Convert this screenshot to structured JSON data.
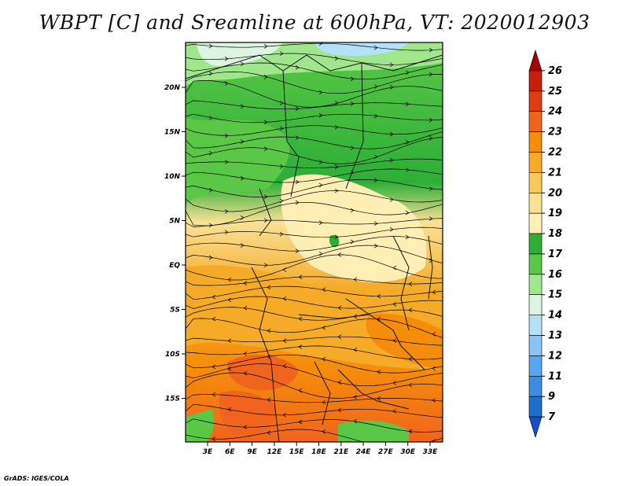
{
  "title": "WBPT [C] and Sreamline at 600hPa, VT: 2020012903",
  "footer": "GrADS: IGES/COLA",
  "map": {
    "lon_ticks": [
      "3E",
      "6E",
      "9E",
      "12E",
      "15E",
      "18E",
      "21E",
      "24E",
      "27E",
      "30E",
      "33E"
    ],
    "lat_ticks": [
      "20N",
      "15N",
      "10N",
      "5N",
      "EQ",
      "5S",
      "10S",
      "15S"
    ]
  },
  "colorbar": {
    "levels": [
      "26",
      "25",
      "24",
      "23",
      "22",
      "21",
      "20",
      "19",
      "18",
      "17",
      "16",
      "15",
      "14",
      "13",
      "12",
      "11",
      "9",
      "7"
    ],
    "colors": [
      "#a50000",
      "#c81e0a",
      "#e03c14",
      "#f0641e",
      "#f58c0a",
      "#f5aa28",
      "#fac85a",
      "#fae196",
      "#ffefb4",
      "#2dae37",
      "#5ac846",
      "#a0e68c",
      "#dcf5e1",
      "#b4e1fa",
      "#8cc3f5",
      "#5aa5f0",
      "#3c8ce6",
      "#1e6ed2",
      "#1450c8"
    ]
  }
}
